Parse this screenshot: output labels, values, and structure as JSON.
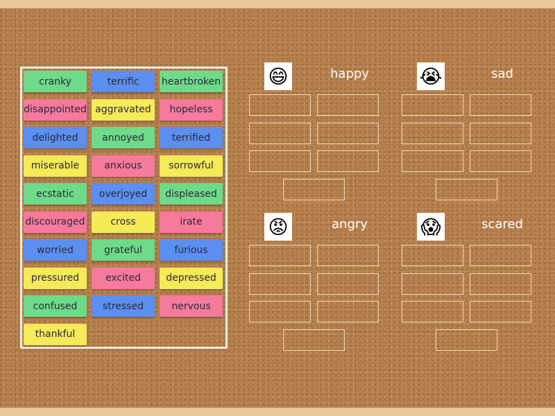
{
  "cards": [
    {
      "label": "cranky",
      "color": "green"
    },
    {
      "label": "terrific",
      "color": "blue"
    },
    {
      "label": "heartbroken",
      "color": "green"
    },
    {
      "label": "disappointed",
      "color": "pink"
    },
    {
      "label": "aggravated",
      "color": "yellow"
    },
    {
      "label": "hopeless",
      "color": "pink"
    },
    {
      "label": "delighted",
      "color": "blue"
    },
    {
      "label": "annoyed",
      "color": "green"
    },
    {
      "label": "terrified",
      "color": "blue"
    },
    {
      "label": "miserable",
      "color": "yellow"
    },
    {
      "label": "anxious",
      "color": "pink"
    },
    {
      "label": "sorrowful",
      "color": "yellow"
    },
    {
      "label": "ecstatic",
      "color": "green"
    },
    {
      "label": "overjoyed",
      "color": "blue"
    },
    {
      "label": "displeased",
      "color": "green"
    },
    {
      "label": "discouraged",
      "color": "pink"
    },
    {
      "label": "cross",
      "color": "yellow"
    },
    {
      "label": "irate",
      "color": "pink"
    },
    {
      "label": "worried",
      "color": "blue"
    },
    {
      "label": "grateful",
      "color": "green"
    },
    {
      "label": "furious",
      "color": "blue"
    },
    {
      "label": "pressured",
      "color": "yellow"
    },
    {
      "label": "excited",
      "color": "pink"
    },
    {
      "label": "depressed",
      "color": "yellow"
    },
    {
      "label": "confused",
      "color": "green"
    },
    {
      "label": "stressed",
      "color": "blue"
    },
    {
      "label": "nervous",
      "color": "pink"
    },
    {
      "label": "thankful",
      "color": "yellow"
    }
  ],
  "groups": [
    {
      "title": "happy",
      "icon": "happy-boy-face-icon",
      "emoji": "😄"
    },
    {
      "title": "sad",
      "icon": "crying-face-icon",
      "emoji": "😭"
    },
    {
      "title": "angry",
      "icon": "angry-red-face-icon",
      "emoji": "😡"
    },
    {
      "title": "scared",
      "icon": "scared-chick-icon",
      "emoji": "😱"
    }
  ],
  "colors": {
    "green": "#6ddb8a",
    "blue": "#5b8ff0",
    "pink": "#f57a9c",
    "yellow": "#f5ea58",
    "board": "#b98350"
  }
}
